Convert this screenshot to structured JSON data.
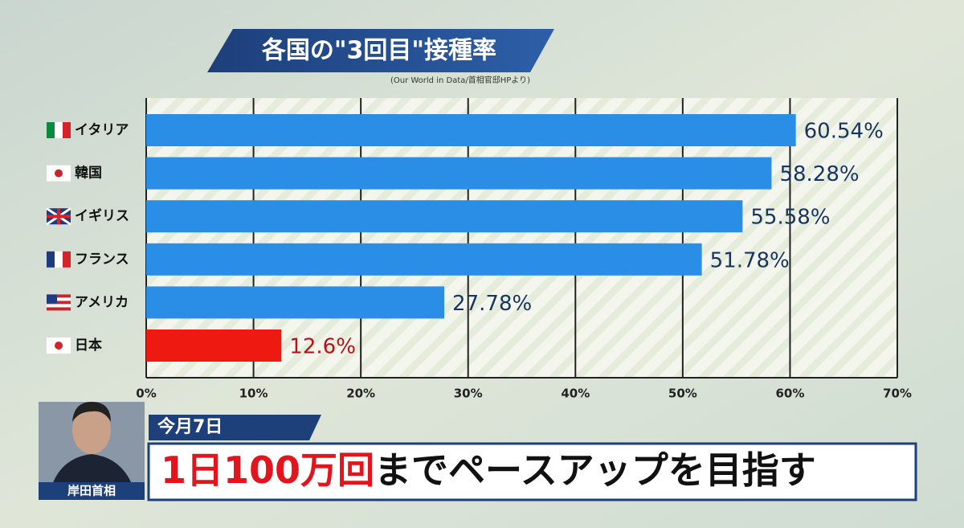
{
  "chart_data": {
    "type": "hbar",
    "title": "各国の\"3回目\"接種率",
    "source": "(Our World in Data/首相官邸HPより)",
    "categories": [
      "イタリア",
      "韓国",
      "イギリス",
      "フランス",
      "アメリカ",
      "日本"
    ],
    "values": [
      60.54,
      58.28,
      55.58,
      51.78,
      27.78,
      12.6
    ],
    "value_labels": [
      "60.54%",
      "58.28%",
      "55.58%",
      "51.78%",
      "27.78%",
      "12.6%"
    ],
    "colors": [
      "#2a8ee6",
      "#2a8ee6",
      "#2a8ee6",
      "#2a8ee6",
      "#2a8ee6",
      "#ee1a12"
    ],
    "value_label_colors": [
      "#17355f",
      "#17355f",
      "#17355f",
      "#17355f",
      "#17355f",
      "#b3141a"
    ],
    "xlim": [
      0,
      70
    ],
    "xticks": [
      {
        "value": 0,
        "label": "0%"
      },
      {
        "value": 10,
        "label": "10%"
      },
      {
        "value": 20,
        "label": "20%"
      },
      {
        "value": 30,
        "label": "30%"
      },
      {
        "value": 40,
        "label": "40%"
      },
      {
        "value": 50,
        "label": "50%"
      },
      {
        "value": 60,
        "label": "60%"
      },
      {
        "value": 70,
        "label": "70%"
      }
    ],
    "grid": true
  },
  "caption": {
    "date": "今月7日",
    "highlight": "1日100万回",
    "text": "までペースアップを目指す",
    "speaker": "岸田首相"
  }
}
